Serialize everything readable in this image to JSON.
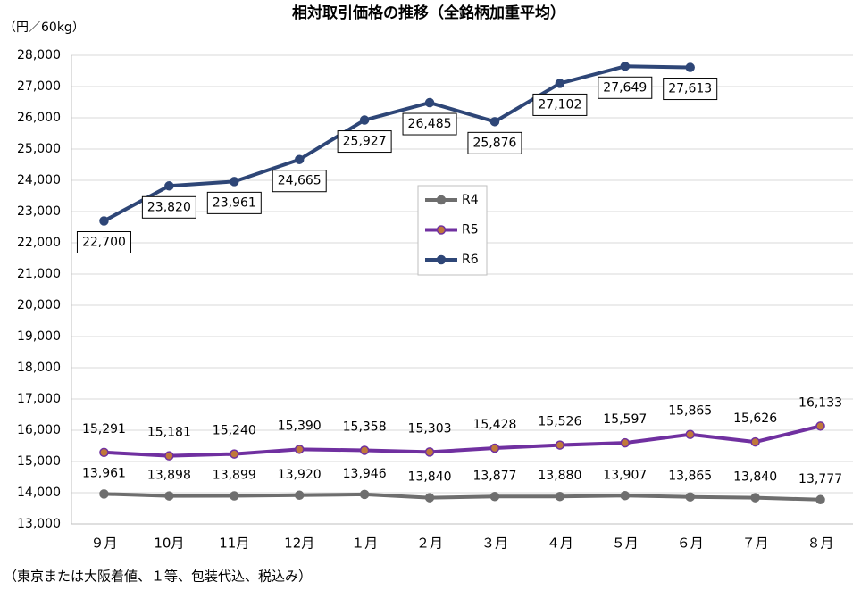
{
  "chart_data": {
    "type": "line",
    "title": "相対取引価格の推移（全銘柄加重平均）",
    "y_label": "（円／60kg）",
    "note": "（東京または大阪着値、１等、包装代込、税込み）",
    "categories": [
      "９月",
      "10月",
      "11月",
      "12月",
      "１月",
      "２月",
      "３月",
      "４月",
      "５月",
      "６月",
      "７月",
      "８月"
    ],
    "ylim": [
      13000,
      28000
    ],
    "yticks": [
      {
        "value": 13000,
        "label": "13,000"
      },
      {
        "value": 14000,
        "label": "14,000"
      },
      {
        "value": 15000,
        "label": "15,000"
      },
      {
        "value": 16000,
        "label": "16,000"
      },
      {
        "value": 17000,
        "label": "17,000"
      },
      {
        "value": 18000,
        "label": "18,000"
      },
      {
        "value": 19000,
        "label": "19,000"
      },
      {
        "value": 20000,
        "label": "20,000"
      },
      {
        "value": 21000,
        "label": "21,000"
      },
      {
        "value": 22000,
        "label": "22,000"
      },
      {
        "value": 23000,
        "label": "23,000"
      },
      {
        "value": 24000,
        "label": "24,000"
      },
      {
        "value": 25000,
        "label": "25,000"
      },
      {
        "value": 26000,
        "label": "26,000"
      },
      {
        "value": 27000,
        "label": "27,000"
      },
      {
        "value": 28000,
        "label": "28,000"
      }
    ],
    "grid": true,
    "series": [
      {
        "name": "R4",
        "color": "#6e6e6e",
        "values": [
          13961,
          13898,
          13899,
          13920,
          13946,
          13840,
          13877,
          13880,
          13907,
          13865,
          13840,
          13777
        ],
        "value_labels": [
          "13,961",
          "13,898",
          "13,899",
          "13,920",
          "13,946",
          "13,840",
          "13,877",
          "13,880",
          "13,907",
          "13,865",
          "13,840",
          "13,777"
        ]
      },
      {
        "name": "R5",
        "color": "#7030a0",
        "marker_color": "#c0783a",
        "values": [
          15291,
          15181,
          15240,
          15390,
          15358,
          15303,
          15428,
          15526,
          15597,
          15865,
          15626,
          16133
        ],
        "value_labels": [
          "15,291",
          "15,181",
          "15,240",
          "15,390",
          "15,358",
          "15,303",
          "15,428",
          "15,526",
          "15,597",
          "15,865",
          "15,626",
          "16,133"
        ]
      },
      {
        "name": "R6",
        "color": "#2e4677",
        "values": [
          22700,
          23820,
          23961,
          24665,
          25927,
          26485,
          25876,
          27102,
          27649,
          27613,
          null,
          null
        ],
        "value_labels": [
          "22,700",
          "23,820",
          "23,961",
          "24,665",
          "25,927",
          "26,485",
          "25,876",
          "27,102",
          "27,649",
          "27,613",
          null,
          null
        ]
      }
    ]
  }
}
